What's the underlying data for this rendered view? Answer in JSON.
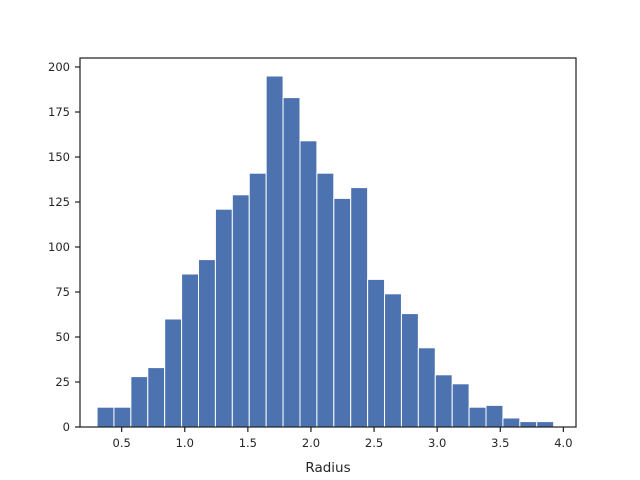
{
  "chart_data": {
    "type": "bar",
    "title": "",
    "xlabel": "Radius",
    "ylabel": "",
    "bar_color": "#4c72b0",
    "edge_color": "#ffffff",
    "grid": false,
    "xlim": [
      0.17,
      4.1
    ],
    "ylim": [
      0,
      205
    ],
    "xticks": [
      0.5,
      1.0,
      1.5,
      2.0,
      2.5,
      3.0,
      3.5,
      4.0
    ],
    "xtick_labels": [
      "0.5",
      "1.0",
      "1.5",
      "2.0",
      "2.5",
      "3.0",
      "3.5",
      "4.0"
    ],
    "yticks": [
      0,
      25,
      50,
      75,
      100,
      125,
      150,
      175,
      200
    ],
    "ytick_labels": [
      "0",
      "25",
      "50",
      "75",
      "100",
      "125",
      "150",
      "175",
      "200"
    ],
    "bins": [
      {
        "x0": 0.305,
        "x1": 0.439,
        "value": 11
      },
      {
        "x0": 0.439,
        "x1": 0.573,
        "value": 11
      },
      {
        "x0": 0.573,
        "x1": 0.707,
        "value": 28
      },
      {
        "x0": 0.707,
        "x1": 0.841,
        "value": 33
      },
      {
        "x0": 0.841,
        "x1": 0.975,
        "value": 60
      },
      {
        "x0": 0.975,
        "x1": 1.109,
        "value": 85
      },
      {
        "x0": 1.109,
        "x1": 1.243,
        "value": 93
      },
      {
        "x0": 1.243,
        "x1": 1.377,
        "value": 121
      },
      {
        "x0": 1.377,
        "x1": 1.511,
        "value": 129
      },
      {
        "x0": 1.511,
        "x1": 1.645,
        "value": 141
      },
      {
        "x0": 1.645,
        "x1": 1.779,
        "value": 195
      },
      {
        "x0": 1.779,
        "x1": 1.913,
        "value": 183
      },
      {
        "x0": 1.913,
        "x1": 2.047,
        "value": 159
      },
      {
        "x0": 2.047,
        "x1": 2.181,
        "value": 141
      },
      {
        "x0": 2.181,
        "x1": 2.315,
        "value": 127
      },
      {
        "x0": 2.315,
        "x1": 2.449,
        "value": 133
      },
      {
        "x0": 2.449,
        "x1": 2.583,
        "value": 82
      },
      {
        "x0": 2.583,
        "x1": 2.717,
        "value": 74
      },
      {
        "x0": 2.717,
        "x1": 2.851,
        "value": 63
      },
      {
        "x0": 2.851,
        "x1": 2.985,
        "value": 44
      },
      {
        "x0": 2.985,
        "x1": 3.119,
        "value": 29
      },
      {
        "x0": 3.119,
        "x1": 3.253,
        "value": 24
      },
      {
        "x0": 3.253,
        "x1": 3.387,
        "value": 11
      },
      {
        "x0": 3.387,
        "x1": 3.521,
        "value": 12
      },
      {
        "x0": 3.521,
        "x1": 3.655,
        "value": 5
      },
      {
        "x0": 3.655,
        "x1": 3.789,
        "value": 3
      },
      {
        "x0": 3.789,
        "x1": 3.923,
        "value": 3
      }
    ]
  }
}
